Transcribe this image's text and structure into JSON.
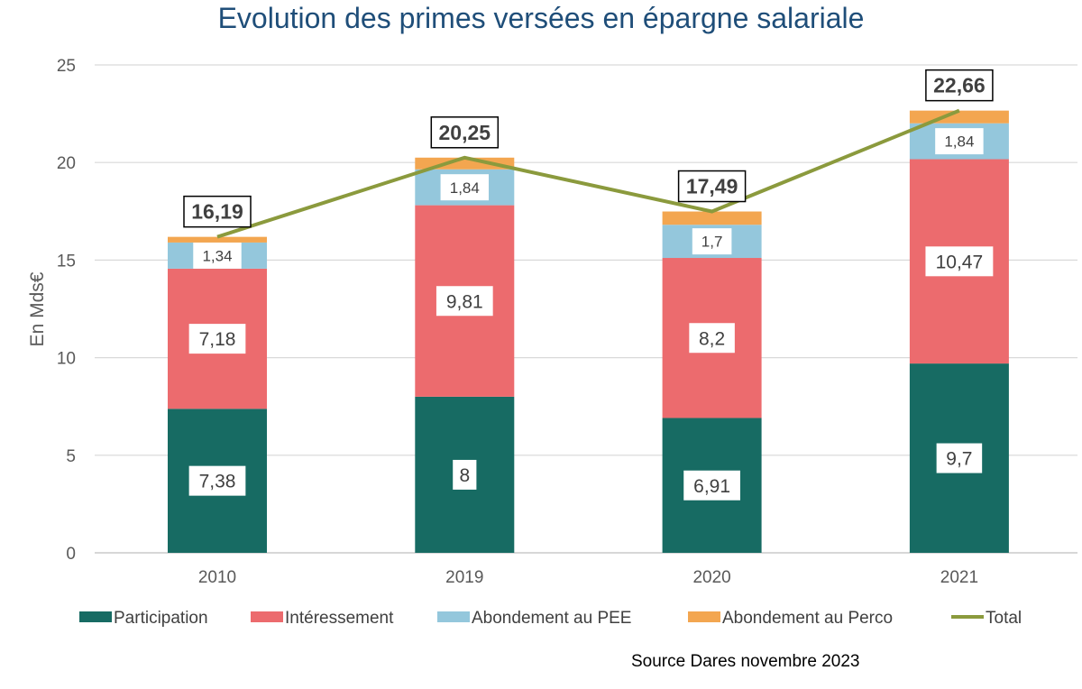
{
  "chart_data": {
    "type": "bar",
    "stacked": true,
    "title": "Evolution des primes versées en épargne salariale",
    "ylabel": "En Mds€",
    "xlabel": "",
    "ylim": [
      0,
      25
    ],
    "yticks": [
      0,
      5,
      10,
      15,
      20,
      25
    ],
    "grid": true,
    "legend": "bottom",
    "categories": [
      "2010",
      "2019",
      "2020",
      "2021"
    ],
    "series": [
      {
        "name": "Participation",
        "color": "#176b63",
        "values": [
          7.38,
          8,
          6.91,
          9.7
        ],
        "labels": [
          "7,38",
          "8",
          "6,91",
          "9,7"
        ]
      },
      {
        "name": "Intéressement",
        "color": "#ec6b6e",
        "values": [
          7.18,
          9.81,
          8.2,
          10.47
        ],
        "labels": [
          "7,18",
          "9,81",
          "8,2",
          "10,47"
        ]
      },
      {
        "name": "Abondement au PEE",
        "color": "#94c7dc",
        "values": [
          1.34,
          1.84,
          1.7,
          1.84
        ],
        "labels": [
          "1,34",
          "1,84",
          "1,7",
          "1,84"
        ]
      },
      {
        "name": "Abondement au Perco",
        "color": "#f3a650",
        "values": [
          0.29,
          0.6,
          0.68,
          0.65
        ],
        "labels": []
      }
    ],
    "line": {
      "name": "Total",
      "color": "#8b9a3d",
      "values": [
        16.19,
        20.25,
        17.49,
        22.66
      ],
      "labels": [
        "16,19",
        "20,25",
        "17,49",
        "22,66"
      ]
    },
    "source": "Source Dares novembre 2023"
  }
}
